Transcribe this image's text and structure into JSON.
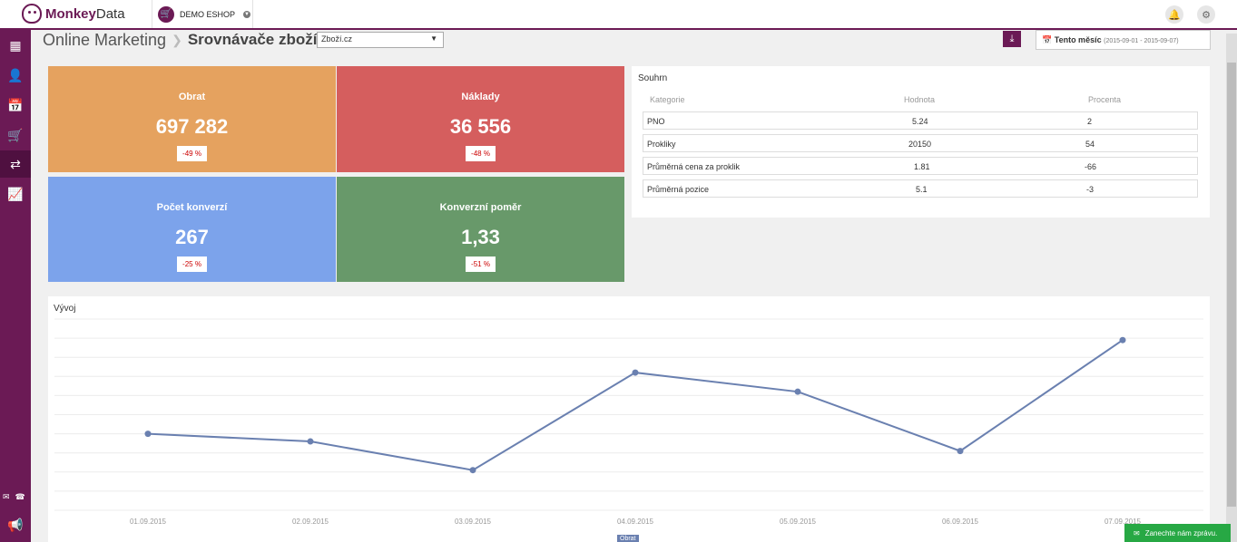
{
  "app": {
    "brand_a": "Monkey",
    "brand_b": "Data",
    "shop_label": "DEMO ESHOP"
  },
  "icons": {
    "shop": "cart-icon",
    "notifications": "bell-icon",
    "settings": "gear-icon",
    "sidebar": [
      "dashboard-icon",
      "customers-icon",
      "calendar-icon",
      "cart-icon",
      "shuffle-icon",
      "growth-chart-icon"
    ],
    "contact": [
      "mail-icon",
      "phone-icon"
    ],
    "announce": "megaphone-icon",
    "download": "download-icon",
    "chat": "chat-icon"
  },
  "breadcrumb": {
    "section": "Online Marketing",
    "page": "Srovnávače zboží"
  },
  "source_select": {
    "value": "Zboží.cz"
  },
  "date_filter": {
    "label": "Tento měsíc",
    "range": "(2015-09-01 - 2015-09-07)"
  },
  "kpis": [
    {
      "title": "Obrat",
      "value": "697 282",
      "change": "-49 %",
      "color": "#e5a25f"
    },
    {
      "title": "Náklady",
      "value": "36 556",
      "change": "-48 %",
      "color": "#d55e5e"
    },
    {
      "title": "Počet konverzí",
      "value": "267",
      "change": "-25 %",
      "color": "#7ca3eb"
    },
    {
      "title": "Konverzní poměr",
      "value": "1,33",
      "change": "-51 %",
      "color": "#68996a"
    }
  ],
  "summary": {
    "title": "Souhrn",
    "headers": [
      "Kategorie",
      "Hodnota",
      "Procenta"
    ],
    "rows": [
      {
        "category": "PNO",
        "value": "5.24",
        "percent": "2"
      },
      {
        "category": "Prokliky",
        "value": "20150",
        "percent": "54"
      },
      {
        "category": "Průměrná cena za proklik",
        "value": "1.81",
        "percent": "-66"
      },
      {
        "category": "Průměrná pozice",
        "value": "5.1",
        "percent": "-3"
      }
    ]
  },
  "chart_title": "Vývoj",
  "chart_data": {
    "type": "line",
    "title": "Vývoj",
    "x": [
      "01.09.2015",
      "02.09.2015",
      "03.09.2015",
      "04.09.2015",
      "05.09.2015",
      "06.09.2015",
      "07.09.2015"
    ],
    "series": [
      {
        "name": "Obrat",
        "values": [
          40,
          36,
          21,
          72,
          62,
          31,
          89
        ]
      }
    ],
    "ylim": [
      0,
      100
    ],
    "grid": true,
    "legend": "bottom-center",
    "color": "#6a80b0"
  },
  "chat": {
    "label": "Zanechte nám zprávu."
  }
}
